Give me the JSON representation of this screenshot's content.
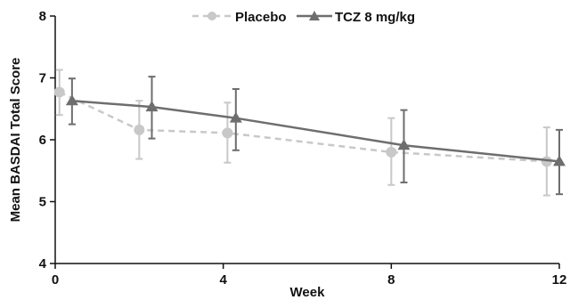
{
  "chart_data": {
    "type": "line",
    "xlabel": "Week",
    "ylabel": "Mean BASDAI Total Score",
    "xlim": [
      0,
      12
    ],
    "ylim": [
      4,
      8
    ],
    "xticks": [
      0,
      4,
      8,
      12
    ],
    "xtick_labels": [
      "0",
      "4",
      "8",
      "12"
    ],
    "yticks": [
      4,
      5,
      6,
      7,
      8
    ],
    "ytick_labels": [
      "4",
      "5",
      "6",
      "7",
      "8"
    ],
    "grid": false,
    "legend_position": "top",
    "series": [
      {
        "name": "Placebo",
        "color": "#c8c8c8",
        "line_style": "dashed",
        "marker": "circle",
        "x": [
          0.1,
          2.0,
          4.1,
          8.0,
          11.7
        ],
        "y": [
          6.77,
          6.16,
          6.11,
          5.8,
          5.65
        ],
        "error_low": [
          6.4,
          5.69,
          5.63,
          5.27,
          5.1
        ],
        "error_high": [
          7.13,
          6.63,
          6.6,
          6.35,
          6.2
        ]
      },
      {
        "name": "TCZ 8 mg/kg",
        "color": "#6e6e6e",
        "line_style": "solid",
        "marker": "triangle",
        "x": [
          0.4,
          2.3,
          4.3,
          8.3,
          12.0
        ],
        "y": [
          6.63,
          6.53,
          6.35,
          5.91,
          5.65
        ],
        "error_low": [
          6.25,
          6.02,
          5.83,
          5.31,
          5.12
        ],
        "error_high": [
          6.99,
          7.02,
          6.82,
          6.48,
          6.16
        ]
      }
    ]
  }
}
